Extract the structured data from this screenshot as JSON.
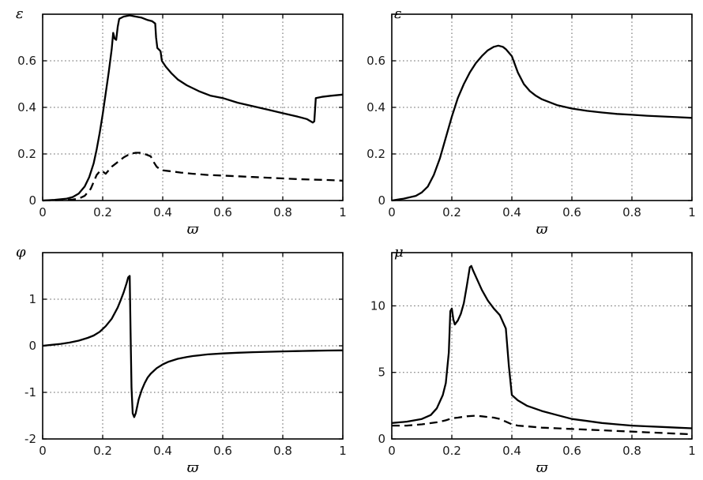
{
  "figure": {
    "background": "#ffffff",
    "colors": {
      "curve": "#000000",
      "grid": "#5a5a5a",
      "box": "#000000"
    }
  },
  "chart_data": [
    {
      "type": "line",
      "title": "",
      "xlabel": "ϖ",
      "ylabel": "ε",
      "ylabel_pos": "left",
      "xlim": [
        0,
        1
      ],
      "ylim": [
        0,
        0.8
      ],
      "xticks": [
        0,
        0.2,
        0.4,
        0.6,
        0.8,
        1
      ],
      "xtick_labels": [
        "0",
        "0.2",
        "0.4",
        "0.6",
        "0.8",
        "1"
      ],
      "yticks": [
        0,
        0.2,
        0.4,
        0.6
      ],
      "ytick_labels": [
        "0",
        "0.2",
        "0.4",
        "0.6"
      ],
      "grid": true,
      "legend": "none",
      "series": [
        {
          "name": "solid",
          "style": "solid",
          "x": [
            0,
            0.04,
            0.08,
            0.1,
            0.12,
            0.14,
            0.155,
            0.17,
            0.18,
            0.19,
            0.2,
            0.21,
            0.22,
            0.23,
            0.235,
            0.24,
            0.245,
            0.25,
            0.255,
            0.27,
            0.29,
            0.31,
            0.33,
            0.35,
            0.365,
            0.375,
            0.378,
            0.382,
            0.39,
            0.393,
            0.397,
            0.41,
            0.43,
            0.45,
            0.48,
            0.52,
            0.56,
            0.6,
            0.65,
            0.7,
            0.75,
            0.8,
            0.85,
            0.88,
            0.9,
            0.905,
            0.91,
            0.93,
            0.96,
            1.0
          ],
          "y": [
            0,
            0.003,
            0.008,
            0.015,
            0.03,
            0.06,
            0.1,
            0.16,
            0.22,
            0.29,
            0.37,
            0.46,
            0.55,
            0.65,
            0.72,
            0.695,
            0.69,
            0.745,
            0.78,
            0.79,
            0.795,
            0.79,
            0.785,
            0.775,
            0.77,
            0.76,
            0.7,
            0.655,
            0.645,
            0.64,
            0.6,
            0.575,
            0.545,
            0.52,
            0.495,
            0.47,
            0.45,
            0.44,
            0.42,
            0.405,
            0.39,
            0.375,
            0.36,
            0.35,
            0.335,
            0.34,
            0.44,
            0.445,
            0.45,
            0.455
          ]
        },
        {
          "name": "dashed",
          "style": "dashed",
          "x": [
            0,
            0.06,
            0.1,
            0.12,
            0.14,
            0.16,
            0.17,
            0.18,
            0.19,
            0.195,
            0.2,
            0.21,
            0.22,
            0.23,
            0.25,
            0.27,
            0.29,
            0.31,
            0.33,
            0.35,
            0.36,
            0.37,
            0.38,
            0.39,
            0.4,
            0.43,
            0.46,
            0.5,
            0.55,
            0.6,
            0.65,
            0.7,
            0.75,
            0.8,
            0.85,
            0.9,
            0.95,
            1.0
          ],
          "y": [
            0,
            0.002,
            0.004,
            0.008,
            0.02,
            0.05,
            0.08,
            0.11,
            0.125,
            0.13,
            0.125,
            0.115,
            0.13,
            0.145,
            0.165,
            0.185,
            0.2,
            0.205,
            0.205,
            0.195,
            0.19,
            0.165,
            0.145,
            0.135,
            0.13,
            0.125,
            0.12,
            0.115,
            0.11,
            0.107,
            0.104,
            0.101,
            0.098,
            0.095,
            0.092,
            0.09,
            0.088,
            0.085
          ]
        }
      ]
    },
    {
      "type": "line",
      "title": "",
      "xlabel": "ϖ",
      "ylabel": "ε",
      "ylabel_pos": "corner",
      "xlim": [
        0,
        1
      ],
      "ylim": [
        0,
        0.8
      ],
      "xticks": [
        0,
        0.2,
        0.4,
        0.6,
        0.8,
        1
      ],
      "xtick_labels": [
        "0",
        "0.2",
        "0.4",
        "0.6",
        "0.8",
        "1"
      ],
      "yticks": [
        0,
        0.2,
        0.4,
        0.6
      ],
      "ytick_labels": [
        "0",
        "0.2",
        "0.4",
        "0.6"
      ],
      "grid": true,
      "legend": "none",
      "series": [
        {
          "name": "solid",
          "style": "solid",
          "x": [
            0,
            0.04,
            0.08,
            0.1,
            0.12,
            0.14,
            0.16,
            0.18,
            0.2,
            0.22,
            0.24,
            0.26,
            0.28,
            0.3,
            0.32,
            0.34,
            0.355,
            0.37,
            0.38,
            0.4,
            0.42,
            0.44,
            0.46,
            0.48,
            0.5,
            0.55,
            0.6,
            0.65,
            0.7,
            0.75,
            0.8,
            0.85,
            0.9,
            0.95,
            1.0
          ],
          "y": [
            0,
            0.008,
            0.02,
            0.035,
            0.06,
            0.11,
            0.18,
            0.27,
            0.36,
            0.44,
            0.5,
            0.55,
            0.59,
            0.62,
            0.645,
            0.66,
            0.665,
            0.66,
            0.65,
            0.62,
            0.55,
            0.5,
            0.47,
            0.45,
            0.435,
            0.41,
            0.395,
            0.385,
            0.378,
            0.372,
            0.368,
            0.364,
            0.361,
            0.358,
            0.355
          ]
        }
      ]
    },
    {
      "type": "line",
      "title": "",
      "xlabel": "ϖ",
      "ylabel": "φ",
      "ylabel_pos": "left",
      "xlim": [
        0,
        1
      ],
      "ylim": [
        -2,
        2
      ],
      "xticks": [
        0,
        0.2,
        0.4,
        0.6,
        0.8,
        1
      ],
      "xtick_labels": [
        "0",
        "0.2",
        "0.4",
        "0.6",
        "0.8",
        "1"
      ],
      "yticks": [
        -2,
        -1,
        0,
        1
      ],
      "ytick_labels": [
        "-2",
        "-1",
        "0",
        "1"
      ],
      "grid": true,
      "legend": "none",
      "series": [
        {
          "name": "solid",
          "style": "solid",
          "x": [
            0,
            0.03,
            0.06,
            0.09,
            0.12,
            0.15,
            0.17,
            0.19,
            0.21,
            0.23,
            0.25,
            0.26,
            0.27,
            0.28,
            0.285,
            0.29,
            0.293,
            0.296,
            0.3,
            0.305,
            0.31,
            0.315,
            0.32,
            0.33,
            0.34,
            0.35,
            0.36,
            0.38,
            0.4,
            0.42,
            0.45,
            0.48,
            0.5,
            0.55,
            0.6,
            0.65,
            0.7,
            0.75,
            0.8,
            0.85,
            0.9,
            0.95,
            1.0
          ],
          "y": [
            0,
            0.02,
            0.04,
            0.07,
            0.11,
            0.17,
            0.22,
            0.3,
            0.42,
            0.58,
            0.82,
            0.98,
            1.15,
            1.35,
            1.47,
            1.5,
            0.3,
            -0.9,
            -1.45,
            -1.53,
            -1.45,
            -1.3,
            -1.15,
            -0.95,
            -0.8,
            -0.68,
            -0.6,
            -0.48,
            -0.4,
            -0.34,
            -0.28,
            -0.24,
            -0.22,
            -0.185,
            -0.165,
            -0.15,
            -0.138,
            -0.128,
            -0.12,
            -0.113,
            -0.107,
            -0.102,
            -0.098
          ]
        }
      ]
    },
    {
      "type": "line",
      "title": "",
      "xlabel": "ϖ",
      "ylabel": "μ",
      "ylabel_pos": "corner",
      "xlim": [
        0,
        1
      ],
      "ylim": [
        0,
        14
      ],
      "xticks": [
        0,
        0.2,
        0.4,
        0.6,
        0.8,
        1
      ],
      "xtick_labels": [
        "0",
        "0.2",
        "0.4",
        "0.6",
        "0.8",
        "1"
      ],
      "yticks": [
        0,
        5,
        10
      ],
      "ytick_labels": [
        "0",
        "5",
        "10"
      ],
      "grid": true,
      "legend": "none",
      "series": [
        {
          "name": "solid",
          "style": "solid",
          "x": [
            0,
            0.05,
            0.1,
            0.13,
            0.15,
            0.17,
            0.18,
            0.19,
            0.195,
            0.2,
            0.205,
            0.21,
            0.22,
            0.23,
            0.24,
            0.25,
            0.26,
            0.265,
            0.27,
            0.28,
            0.3,
            0.32,
            0.34,
            0.36,
            0.37,
            0.38,
            0.39,
            0.4,
            0.42,
            0.45,
            0.5,
            0.55,
            0.6,
            0.65,
            0.7,
            0.75,
            0.8,
            0.85,
            0.9,
            0.95,
            1.0
          ],
          "y": [
            1.2,
            1.3,
            1.5,
            1.8,
            2.3,
            3.3,
            4.2,
            6.5,
            9.6,
            9.8,
            9.0,
            8.6,
            8.9,
            9.4,
            10.2,
            11.5,
            12.9,
            13.0,
            12.7,
            12.2,
            11.2,
            10.4,
            9.8,
            9.3,
            8.8,
            8.3,
            5.5,
            3.3,
            2.9,
            2.5,
            2.1,
            1.8,
            1.5,
            1.35,
            1.2,
            1.1,
            1.0,
            0.95,
            0.9,
            0.85,
            0.8
          ]
        },
        {
          "name": "dashed",
          "style": "dashed",
          "x": [
            0,
            0.05,
            0.1,
            0.15,
            0.18,
            0.2,
            0.22,
            0.25,
            0.28,
            0.3,
            0.32,
            0.34,
            0.36,
            0.38,
            0.4,
            0.42,
            0.45,
            0.5,
            0.55,
            0.6,
            0.65,
            0.7,
            0.75,
            0.8,
            0.85,
            0.9,
            0.95,
            1.0
          ],
          "y": [
            1.0,
            1.0,
            1.1,
            1.25,
            1.4,
            1.55,
            1.6,
            1.7,
            1.75,
            1.7,
            1.65,
            1.6,
            1.5,
            1.3,
            1.1,
            1.0,
            0.95,
            0.85,
            0.8,
            0.75,
            0.7,
            0.65,
            0.6,
            0.55,
            0.5,
            0.45,
            0.4,
            0.35
          ]
        }
      ]
    }
  ]
}
